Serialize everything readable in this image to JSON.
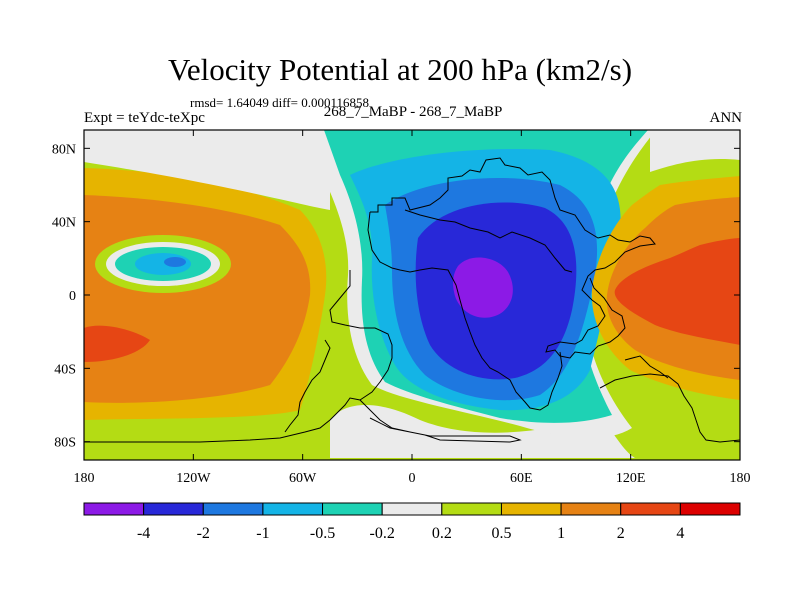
{
  "chart_data": {
    "type": "contour-map",
    "title": "Velocity Potential at 200 hPa (km2/s)",
    "stats_text": "rmsd= 1.64049 diff= 0.000116858",
    "left_label": "Expt = teYdc-teXpc",
    "center_label": "268_7_MaBP - 268_7_MaBP",
    "right_label": "ANN",
    "x_ticks": [
      {
        "lon": -180,
        "label": "180"
      },
      {
        "lon": -120,
        "label": "120W"
      },
      {
        "lon": -60,
        "label": "60W"
      },
      {
        "lon": 0,
        "label": "0"
      },
      {
        "lon": 60,
        "label": "60E"
      },
      {
        "lon": 120,
        "label": "120E"
      },
      {
        "lon": 180,
        "label": "180"
      }
    ],
    "y_ticks": [
      {
        "lat": 80,
        "label": "80N"
      },
      {
        "lat": 40,
        "label": "40N"
      },
      {
        "lat": 0,
        "label": "0"
      },
      {
        "lat": -40,
        "label": "40S"
      },
      {
        "lat": -80,
        "label": "80S"
      }
    ],
    "xlim": [
      -180,
      180
    ],
    "ylim": [
      -90,
      90
    ],
    "colorbar": {
      "levels": [
        "-4",
        "-2",
        "-1",
        "-0.5",
        "-0.2",
        "0.2",
        "0.5",
        "1",
        "2",
        "4"
      ],
      "colors": [
        "#8c1ae6",
        "#2828d8",
        "#1e78e0",
        "#14b4e6",
        "#1ed2b4",
        "#ebebeb",
        "#b4dc14",
        "#e6b400",
        "#e68214",
        "#e64614",
        "#dc0000"
      ]
    }
  }
}
